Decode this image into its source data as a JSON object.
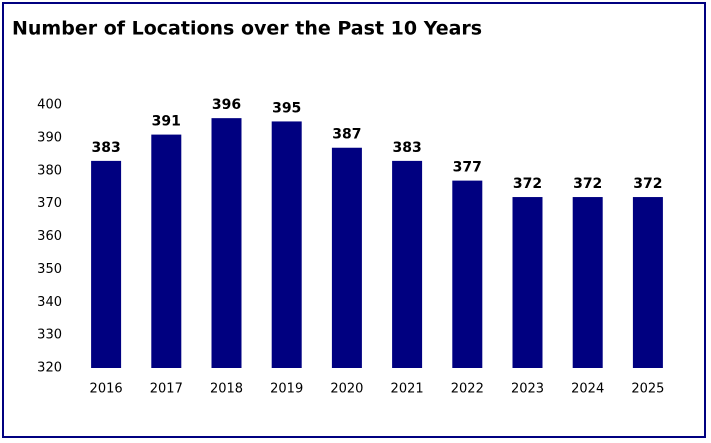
{
  "chart_data": {
    "type": "bar",
    "title": "Number of Locations over the Past 10 Years",
    "categories": [
      "2016",
      "2017",
      "2018",
      "2019",
      "2020",
      "2021",
      "2022",
      "2023",
      "2024",
      "2025"
    ],
    "values": [
      383,
      391,
      396,
      395,
      387,
      383,
      377,
      372,
      372,
      372
    ],
    "color": "#000080",
    "ylim": [
      320,
      400
    ],
    "yticks": [
      320,
      330,
      340,
      350,
      360,
      370,
      380,
      390,
      400
    ],
    "grid": false,
    "data_labels": true
  }
}
